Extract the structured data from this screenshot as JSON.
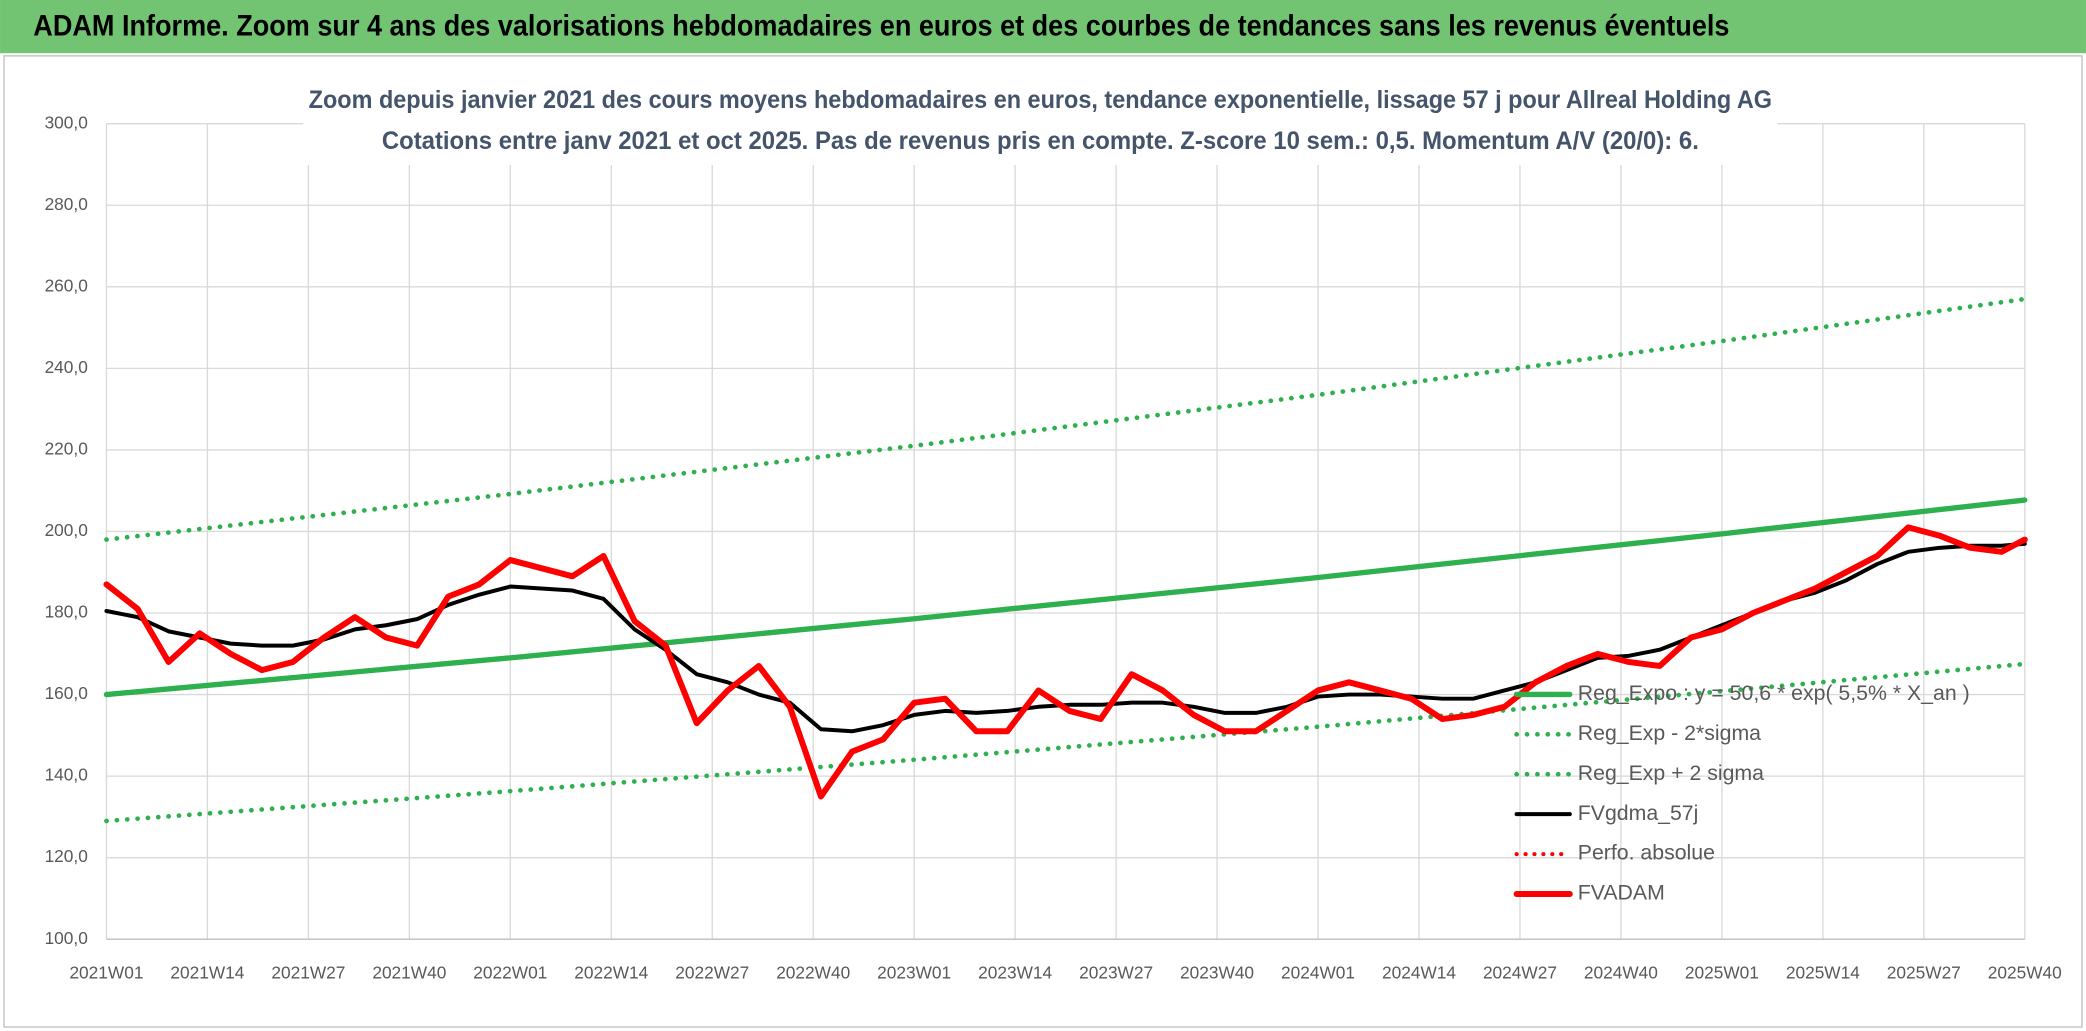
{
  "header": {
    "title": "ADAM Informe. Zoom sur 4 ans des valorisations hebdomadaires en euros et des courbes de tendances sans les revenus éventuels"
  },
  "chart_data": {
    "type": "line",
    "title": "Zoom depuis janvier 2021 des cours moyens hebdomadaires en euros, tendance exponentielle, lissage 57 j pour Allreal Holding AG",
    "subtitle": "Cotations entre janv 2021 et oct 2025. Pas de revenus pris en compte. Z-score 10 sem.: 0,5. Momentum A/V (20/0): 6.",
    "xlim": [
      0,
      247
    ],
    "xticks": [
      {
        "value": 0,
        "label": "2021W01"
      },
      {
        "value": 13,
        "label": "2021W14"
      },
      {
        "value": 26,
        "label": "2021W27"
      },
      {
        "value": 39,
        "label": "2021W40"
      },
      {
        "value": 52,
        "label": "2022W01"
      },
      {
        "value": 65,
        "label": "2022W14"
      },
      {
        "value": 78,
        "label": "2022W27"
      },
      {
        "value": 91,
        "label": "2022W40"
      },
      {
        "value": 104,
        "label": "2023W01"
      },
      {
        "value": 117,
        "label": "2023W14"
      },
      {
        "value": 130,
        "label": "2023W27"
      },
      {
        "value": 143,
        "label": "2023W40"
      },
      {
        "value": 156,
        "label": "2024W01"
      },
      {
        "value": 169,
        "label": "2024W14"
      },
      {
        "value": 182,
        "label": "2024W27"
      },
      {
        "value": 195,
        "label": "2024W40"
      },
      {
        "value": 208,
        "label": "2025W01"
      },
      {
        "value": 221,
        "label": "2025W14"
      },
      {
        "value": 234,
        "label": "2025W27"
      },
      {
        "value": 247,
        "label": "2025W40"
      }
    ],
    "ylim": [
      100,
      300
    ],
    "yticks": [
      {
        "value": 100,
        "label": "100,0"
      },
      {
        "value": 120,
        "label": "120,0"
      },
      {
        "value": 140,
        "label": "140,0"
      },
      {
        "value": 160,
        "label": "160,0"
      },
      {
        "value": 180,
        "label": "180,0"
      },
      {
        "value": 200,
        "label": "200,0"
      },
      {
        "value": 220,
        "label": "220,0"
      },
      {
        "value": 240,
        "label": "240,0"
      },
      {
        "value": 260,
        "label": "260,0"
      },
      {
        "value": 280,
        "label": "280,0"
      },
      {
        "value": 300,
        "label": "300,0"
      }
    ],
    "grid": true,
    "legend": "right",
    "x": [
      0,
      4,
      8,
      12,
      16,
      20,
      24,
      28,
      32,
      36,
      40,
      44,
      48,
      52,
      56,
      60,
      64,
      68,
      72,
      76,
      80,
      84,
      88,
      92,
      96,
      100,
      104,
      108,
      112,
      116,
      120,
      124,
      128,
      132,
      136,
      140,
      144,
      148,
      152,
      156,
      160,
      164,
      168,
      172,
      176,
      180,
      184,
      188,
      192,
      196,
      200,
      204,
      208,
      212,
      216,
      220,
      224,
      228,
      232,
      236,
      240,
      244,
      247
    ],
    "series": [
      {
        "name": "Reg_Expo : y = 50,6 * exp( 5,5% *  X_an )",
        "color": "#2eb04f",
        "style": "solid",
        "width": 4,
        "x": [
          0,
          52,
          104,
          156,
          208,
          247
        ],
        "values": [
          160,
          169.0,
          178.6,
          188.7,
          199.4,
          207.7
        ]
      },
      {
        "name": "Reg_Exp - 2*sigma",
        "color": "#2eb04f",
        "style": "dotted",
        "width": 3.5,
        "x": [
          0,
          52,
          104,
          156,
          208,
          247
        ],
        "values": [
          129,
          136.3,
          144.0,
          152.1,
          160.8,
          167.5
        ]
      },
      {
        "name": "Reg_Exp + 2 sigma",
        "color": "#2eb04f",
        "style": "dotted",
        "width": 3.5,
        "x": [
          0,
          52,
          104,
          156,
          208,
          247
        ],
        "values": [
          198,
          209.2,
          221.0,
          233.5,
          246.7,
          257
        ]
      },
      {
        "name": "FVgdma_57j",
        "color": "#000000",
        "style": "solid",
        "width": 3,
        "values": [
          180.5,
          179,
          175.5,
          174,
          172.5,
          172,
          172,
          173.5,
          176,
          177,
          178.5,
          182,
          184.5,
          186.5,
          186,
          185.5,
          183.5,
          176,
          171,
          165,
          163,
          160,
          158,
          151.5,
          151,
          152.5,
          155,
          156,
          155.5,
          156,
          157,
          157.5,
          157.5,
          158,
          158,
          157,
          155.5,
          155.5,
          157,
          159.5,
          160,
          160,
          159.5,
          159,
          159,
          161,
          163,
          166,
          169,
          169.5,
          171,
          174,
          177,
          180,
          183,
          185,
          188,
          192,
          195,
          196,
          196.5,
          196.5,
          197
        ]
      },
      {
        "name": "Perfo. absolue",
        "color": "#ff0000",
        "style": "dotted",
        "width": 3
      },
      {
        "name": "FVADAM",
        "color": "#ff0000",
        "style": "solid",
        "width": 4.5,
        "values": [
          187,
          181,
          168,
          175,
          170,
          166,
          168,
          174,
          179,
          174,
          172,
          184,
          187,
          193,
          191,
          189,
          194,
          178,
          172,
          153,
          161,
          167,
          157,
          135,
          146,
          149,
          158,
          159,
          151,
          151,
          161,
          156,
          154,
          165,
          161,
          155,
          151,
          151,
          156,
          161,
          163,
          161,
          159,
          154,
          155,
          157,
          163,
          167,
          170,
          168,
          167,
          174,
          176,
          180,
          183,
          186,
          190,
          194,
          201,
          199,
          196,
          195,
          198
        ]
      }
    ]
  }
}
